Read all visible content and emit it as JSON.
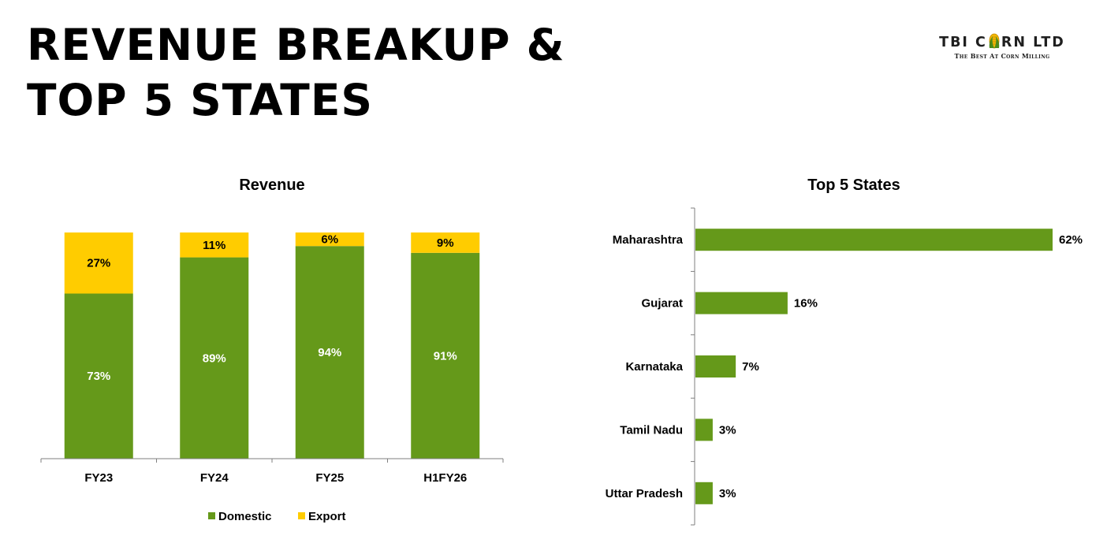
{
  "page": {
    "title_line1": "REVENUE BREAKUP &",
    "title_line2": "TOP 5 STATES"
  },
  "logo": {
    "name_part1": "TBI C",
    "name_part2": "RN LTD",
    "tagline": "The Best At Corn Milling",
    "icon": "corn-cob-icon"
  },
  "colors": {
    "domestic": "#65991a",
    "export": "#ffcc00",
    "states_bar": "#65991a"
  },
  "chart_data": [
    {
      "type": "bar",
      "stacked": true,
      "title": "Revenue",
      "categories": [
        "FY23",
        "FY24",
        "FY25",
        "H1FY26"
      ],
      "series": [
        {
          "name": "Domestic",
          "values": [
            73,
            89,
            94,
            91
          ],
          "labels": [
            "73%",
            "89%",
            "94%",
            "91%"
          ]
        },
        {
          "name": "Export",
          "values": [
            27,
            11,
            6,
            9
          ],
          "labels": [
            "27%",
            "11%",
            "6%",
            "9%"
          ]
        }
      ],
      "ylim": [
        0,
        100
      ],
      "legend": "bottom",
      "grid": false
    },
    {
      "type": "bar",
      "orientation": "horizontal",
      "title": "Top 5 States",
      "categories": [
        "Maharashtra",
        "Gujarat",
        "Karnataka",
        "Tamil Nadu",
        "Uttar Pradesh"
      ],
      "values": [
        62,
        16,
        7,
        3,
        3
      ],
      "labels": [
        "62%",
        "16%",
        "7%",
        "3%",
        "3%"
      ],
      "xlim": [
        0,
        62
      ],
      "grid": false
    }
  ]
}
